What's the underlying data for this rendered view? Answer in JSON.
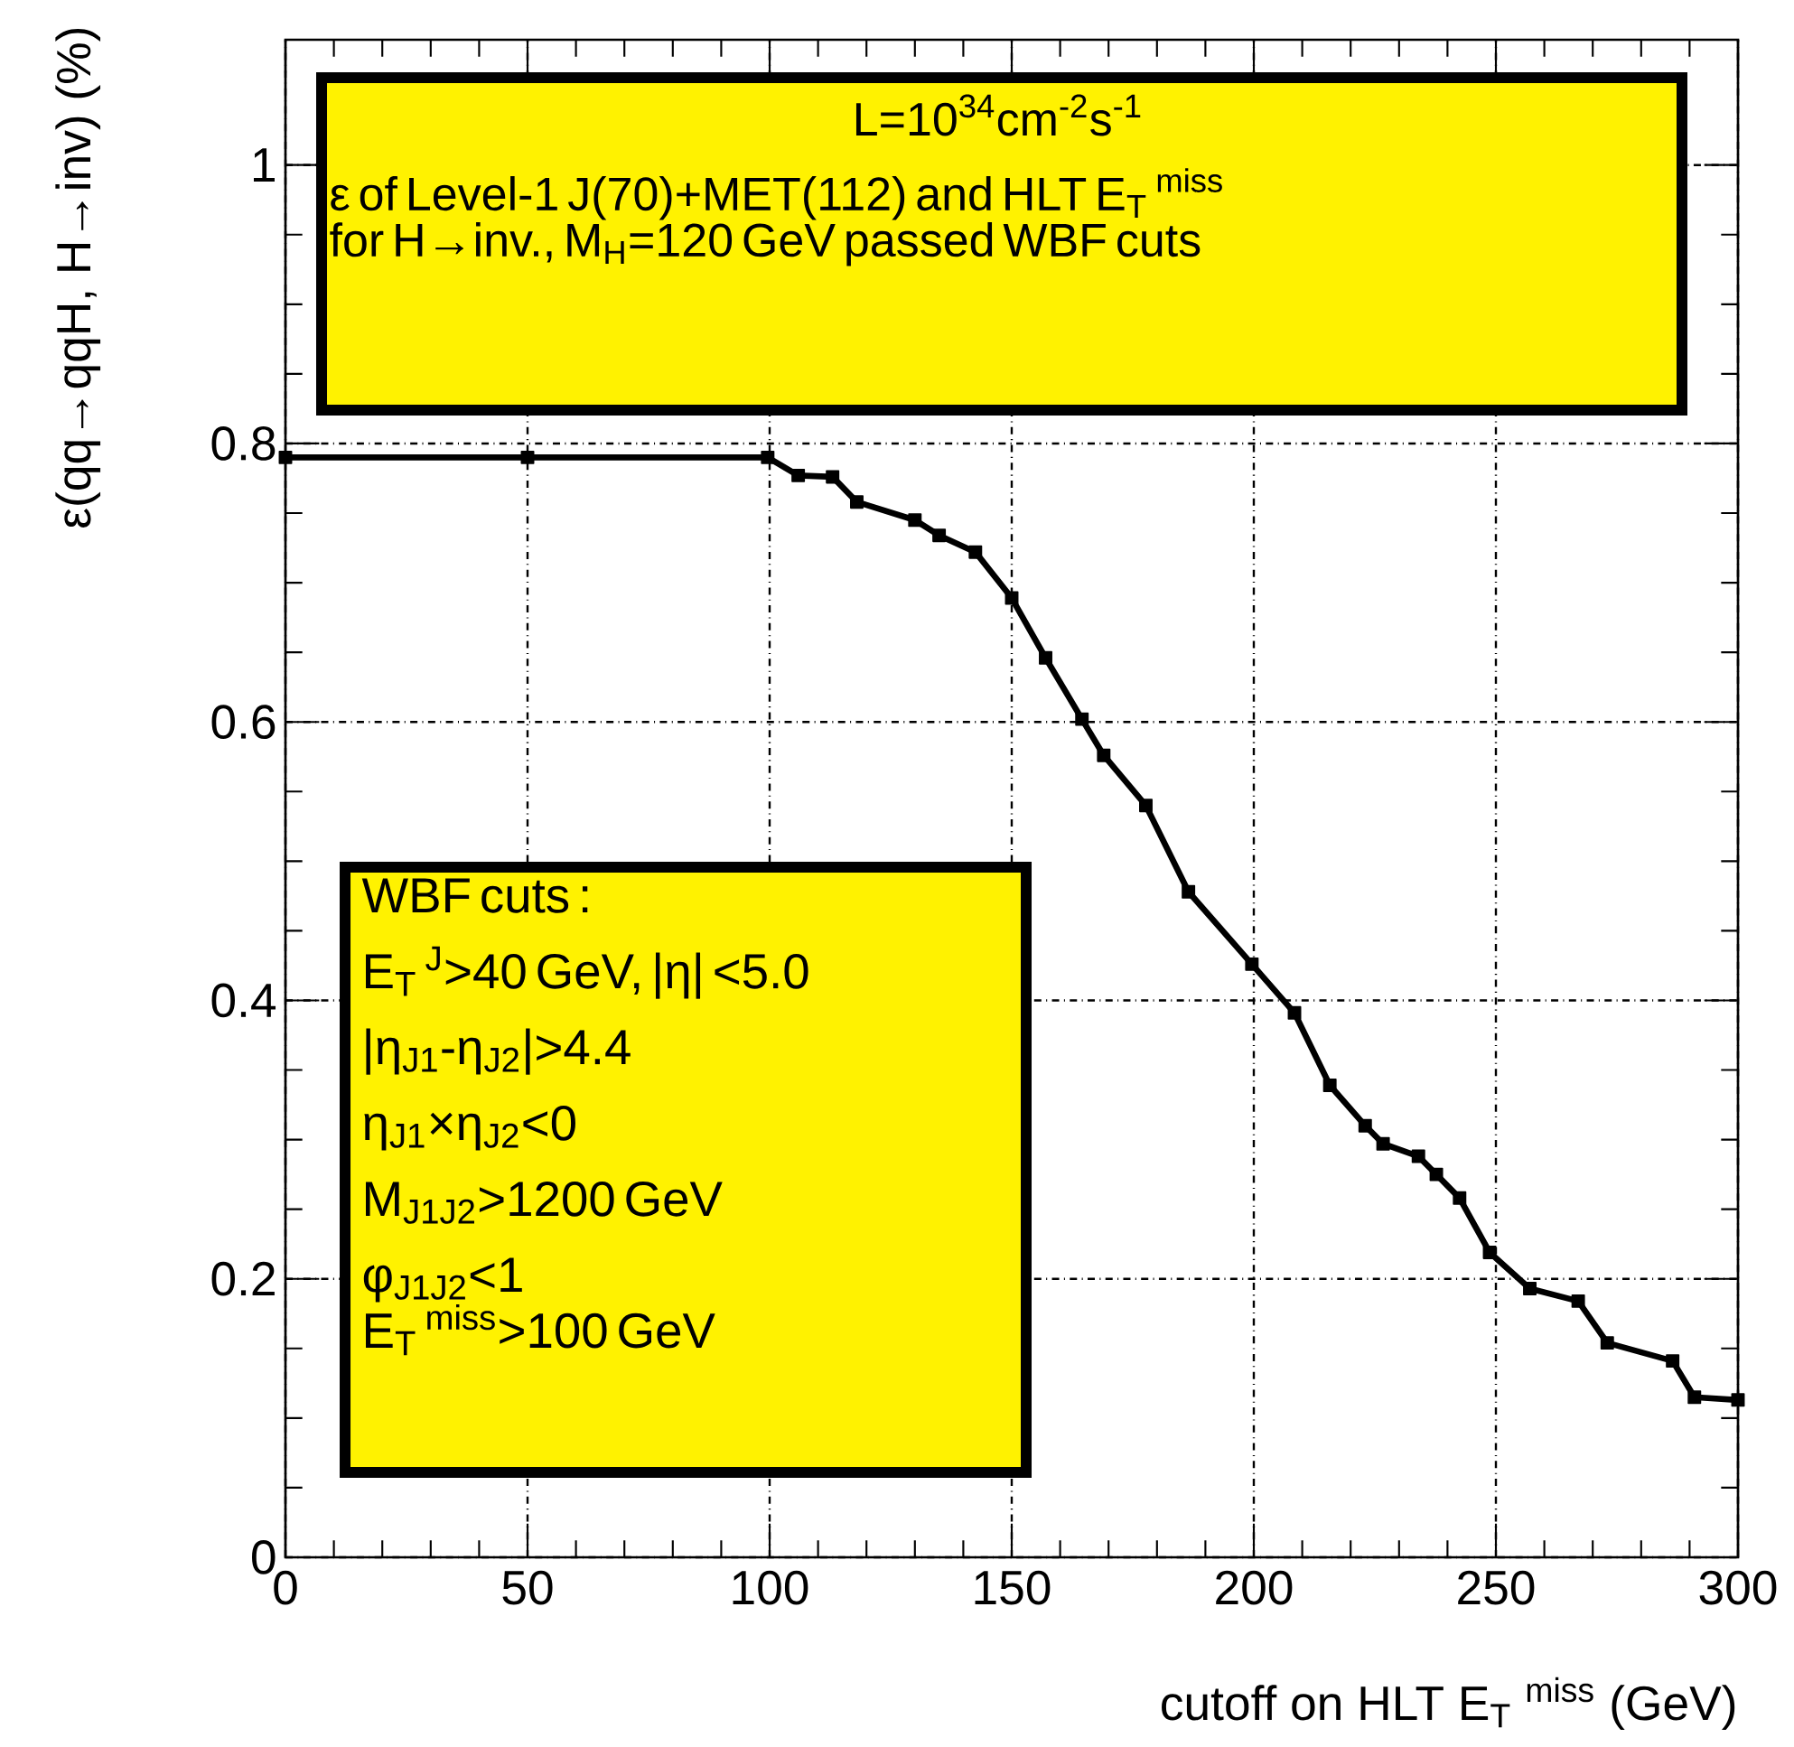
{
  "chart_data": {
    "type": "line",
    "xlabel": "cutoff on HLT E$_{T}$ $^{miss}$ (GeV)",
    "ylabel": "ε(qq→qqH, H→inv) (%)",
    "annotations": [
      "L=10$^{34}$cm$^{-2}$s$^{-1}$",
      "ε of Level-1 J(70)+MET(112) and HLT E$_{T}$ $^{miss}$",
      "for H→inv., M$_{H}$=120 GeV passed WBF cuts",
      "WBF cuts :",
      "E$_{T}$ $^{J}$>40 GeV, |η| <5.0",
      "|η$_{J1}$-η$_{J2}$|>4.4",
      "η$_{J1}$×η$_{J2}$<0",
      "M$_{J1J2}$>1200 GeV",
      "φ$_{J1J2}$<1",
      "E$_{T}$ $^{miss}$>100 GeV"
    ],
    "xlim": [
      0,
      300
    ],
    "ylim": [
      0,
      1.09
    ],
    "xticks": [
      0,
      50,
      100,
      150,
      200,
      250,
      300
    ],
    "yticks": [
      0,
      0.2,
      0.4,
      0.6,
      0.8,
      1
    ],
    "grid": true,
    "marker": "square",
    "line_style": "solid",
    "series": [
      {
        "color": "#000000",
        "x": [
          0,
          50,
          99.6,
          105.9,
          113,
          118,
          130,
          135,
          142.5,
          150,
          157,
          164.5,
          169,
          177.7,
          186.5,
          199.6,
          208.4,
          215.7,
          223,
          226.7,
          234,
          237.7,
          242.5,
          248.7,
          257,
          267,
          273,
          286.5,
          291,
          300
        ],
        "values": [
          0.79,
          0.79,
          0.79,
          0.777,
          0.776,
          0.758,
          0.745,
          0.734,
          0.722,
          0.689,
          0.646,
          0.602,
          0.576,
          0.54,
          0.478,
          0.426,
          0.391,
          0.339,
          0.31,
          0.297,
          0.288,
          0.275,
          0.258,
          0.219,
          0.193,
          0.184,
          0.154,
          0.141,
          0.115,
          0.113
        ]
      }
    ]
  }
}
